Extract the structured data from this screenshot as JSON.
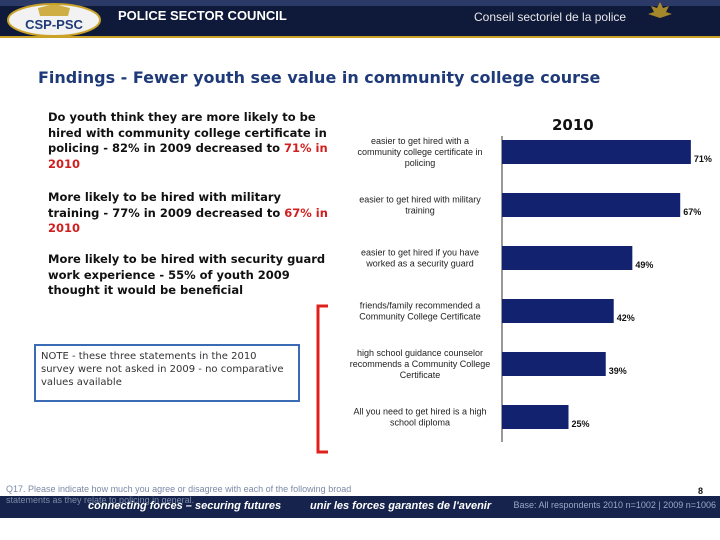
{
  "header": {
    "org_en": "POLICE SECTOR COUNCIL",
    "org_fr": "Conseil sectoriel de la police",
    "logo_text": "CSP-PSC"
  },
  "slide": {
    "title": "Findings - Fewer youth see value in community college course"
  },
  "findings": {
    "f1_text": "Do youth think they are more likely to be hired with community college certificate in policing - 82% in 2009 decreased to ",
    "f1_highlight": "71% in 2010",
    "f2_text": "More likely to be hired with military training - 77% in 2009 decreased to ",
    "f2_highlight": "67% in 2010",
    "f3_text": "More likely to be hired with security guard work experience - 55% of youth 2009 thought it would be beneficial"
  },
  "note": {
    "text": "NOTE - these three statements in the 2010 survey were not asked in 2009 - no comparative values available"
  },
  "chart_data": {
    "type": "bar",
    "orientation": "horizontal",
    "title": "2010",
    "categories": [
      "easier to get hired with a community college certificate in policing",
      "easier to get hired with military training",
      "easier to get hired if you have worked as a security guard",
      "friends/family recommended a Community College Certificate",
      "high school guidance counselor recommends a Community College Certificate",
      "All you need to get hired is a high school diploma"
    ],
    "values": [
      71,
      67,
      49,
      42,
      39,
      25
    ],
    "value_labels": [
      "71%",
      "67%",
      "49%",
      "42%",
      "39%",
      "25%"
    ],
    "category_lines": [
      [
        "easier to get hired with a",
        "community college certificate in",
        "policing"
      ],
      [
        "easier to get hired with military",
        "training"
      ],
      [
        "easier to get hired if you have",
        "worked as a security guard"
      ],
      [
        "friends/family recommended a",
        "Community College Certificate"
      ],
      [
        "high school guidance counselor",
        "recommends a Community College",
        "Certificate"
      ],
      [
        "All you need to get hired is a high",
        "school diploma"
      ]
    ],
    "bar_color": "#12226e",
    "xlim": [
      0,
      100
    ],
    "grid": false,
    "legend": "none"
  },
  "footer": {
    "motto_en": "connecting forces – securing futures",
    "motto_fr": "unir les forces garantes de l'avenir",
    "question": "Q17. Please indicate how much you agree or disagree with each of the following broad statements as they relate to policing in general.",
    "base": "Base: All respondents 2010 n=1002 | 2009 n=1006",
    "page": "8"
  },
  "colors": {
    "header_bg": "#0f1a3a",
    "title": "#1f3a78",
    "highlight": "#d11f1f",
    "note_border": "#3b6bb5",
    "bracket": "#e0201c"
  }
}
